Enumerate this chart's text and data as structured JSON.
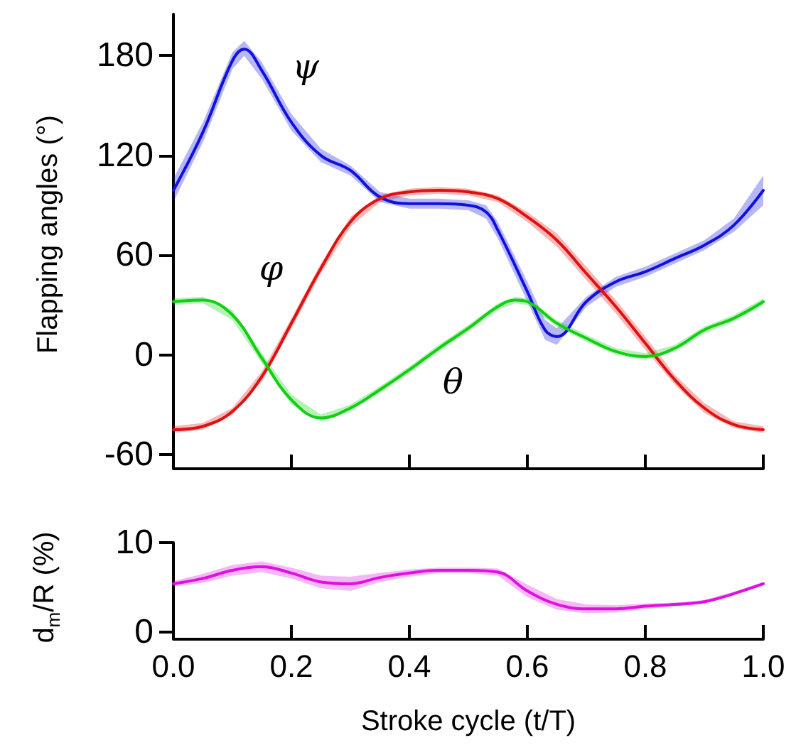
{
  "chart_data": [
    {
      "type": "line",
      "ylabel": "Flapping angles (°)",
      "x": [
        0,
        0.05,
        0.1,
        0.12,
        0.15,
        0.2,
        0.25,
        0.3,
        0.35,
        0.4,
        0.45,
        0.5,
        0.53,
        0.55,
        0.6,
        0.63,
        0.65,
        0.7,
        0.75,
        0.8,
        0.85,
        0.9,
        0.95,
        1.0
      ],
      "series": [
        {
          "name": "ψ",
          "color": "#1010e0",
          "values": [
            99,
            134,
            177,
            184,
            171,
            140,
            120,
            111,
            95,
            91,
            91,
            90,
            86,
            75,
            38,
            15,
            11,
            32,
            44,
            50,
            58,
            66,
            78,
            99
          ],
          "lower": [
            92,
            128,
            172,
            180,
            166,
            135,
            116,
            108,
            92,
            88,
            88,
            87,
            82,
            70,
            32,
            9,
            6,
            29,
            41,
            47,
            55,
            63,
            74,
            90
          ],
          "upper": [
            106,
            140,
            182,
            189,
            176,
            145,
            124,
            114,
            98,
            94,
            94,
            93,
            90,
            80,
            44,
            21,
            16,
            35,
            47,
            53,
            61,
            69,
            82,
            108
          ]
        },
        {
          "name": "φ",
          "color": "#e01010",
          "x": [
            0,
            0.05,
            0.1,
            0.15,
            0.2,
            0.25,
            0.3,
            0.35,
            0.4,
            0.45,
            0.5,
            0.55,
            0.6,
            0.65,
            0.7,
            0.75,
            0.8,
            0.85,
            0.9,
            0.95,
            1.0
          ],
          "values": [
            -45,
            -43,
            -34,
            -13,
            19,
            52,
            80,
            94,
            98,
            99,
            98,
            94,
            83,
            69,
            49,
            29,
            7,
            -15,
            -32,
            -42,
            -45
          ],
          "lower": [
            -47,
            -45,
            -36,
            -16,
            16,
            49,
            77,
            92,
            96,
            97,
            96,
            92,
            80,
            65,
            45,
            25,
            3,
            -18,
            -35,
            -44,
            -47
          ],
          "upper": [
            -43,
            -41,
            -32,
            -10,
            22,
            55,
            83,
            96,
            100,
            101,
            100,
            96,
            86,
            73,
            53,
            33,
            11,
            -12,
            -29,
            -40,
            -43
          ]
        },
        {
          "name": "θ",
          "color": "#10d010",
          "x": [
            0,
            0.05,
            0.1,
            0.15,
            0.2,
            0.25,
            0.3,
            0.35,
            0.4,
            0.45,
            0.5,
            0.55,
            0.58,
            0.6,
            0.65,
            0.7,
            0.75,
            0.8,
            0.85,
            0.9,
            0.95,
            1.0
          ],
          "values": [
            32,
            33,
            24,
            -2,
            -27,
            -38,
            -32,
            -21,
            -9,
            4,
            16,
            29,
            33,
            32,
            19,
            10,
            2,
            -1,
            4,
            15,
            22,
            32
          ],
          "lower": [
            30,
            31,
            21,
            -5,
            -30,
            -40,
            -34,
            -23,
            -11,
            2,
            14,
            27,
            31,
            30,
            17,
            8,
            0,
            -3,
            2,
            13,
            20,
            30
          ],
          "upper": [
            34,
            35,
            27,
            1,
            -24,
            -36,
            -30,
            -19,
            -7,
            6,
            18,
            31,
            35,
            34,
            21,
            12,
            4,
            1,
            6,
            17,
            24,
            34
          ]
        }
      ],
      "xlim": [
        0,
        1
      ],
      "xticks": [
        0,
        0.2,
        0.4,
        0.6,
        0.8,
        1.0
      ],
      "ylim": [
        -60,
        205
      ],
      "yticks": [
        -60,
        0,
        60,
        120,
        180
      ],
      "tick_labels": "y",
      "grid": false,
      "legend": false,
      "marker": "none",
      "line_style": "solid"
    },
    {
      "type": "line",
      "ylabel": "d$_{m}$/R (%)",
      "xlabel": "Stroke cycle (t/T)",
      "x": [
        0,
        0.05,
        0.1,
        0.15,
        0.2,
        0.25,
        0.3,
        0.35,
        0.4,
        0.45,
        0.5,
        0.55,
        0.6,
        0.65,
        0.7,
        0.75,
        0.8,
        0.85,
        0.9,
        0.95,
        1.0
      ],
      "series": [
        {
          "color": "#e010e0",
          "values": [
            5.4,
            6.0,
            6.9,
            7.3,
            6.6,
            5.6,
            5.4,
            6.1,
            6.6,
            6.9,
            6.9,
            6.7,
            4.6,
            3.1,
            2.6,
            2.6,
            2.9,
            3.1,
            3.4,
            4.3,
            5.4
          ],
          "lower": [
            5.1,
            5.5,
            6.3,
            6.7,
            6.0,
            4.9,
            4.6,
            5.6,
            6.2,
            6.6,
            6.6,
            6.3,
            3.9,
            2.5,
            2.1,
            2.2,
            2.6,
            2.9,
            3.2,
            4.1,
            5.2
          ],
          "upper": [
            5.7,
            6.5,
            7.5,
            7.9,
            7.2,
            6.3,
            6.2,
            6.6,
            7.0,
            7.2,
            7.2,
            7.1,
            5.3,
            3.7,
            3.1,
            3.0,
            3.2,
            3.3,
            3.6,
            4.5,
            5.6
          ]
        }
      ],
      "xlim": [
        0,
        1
      ],
      "xticks": [
        {
          "value": 0,
          "label": "0.0"
        },
        {
          "value": 0.2,
          "label": "0.2"
        },
        {
          "value": 0.4,
          "label": "0.4"
        },
        {
          "value": 0.6,
          "label": "0.6"
        },
        {
          "value": 0.8,
          "label": "0.8"
        },
        {
          "value": 1.0,
          "label": "1.0"
        }
      ],
      "ylim": [
        0,
        10
      ],
      "yticks": [
        0,
        10
      ],
      "grid": false,
      "legend": false,
      "marker": "none",
      "line_style": "solid"
    }
  ]
}
